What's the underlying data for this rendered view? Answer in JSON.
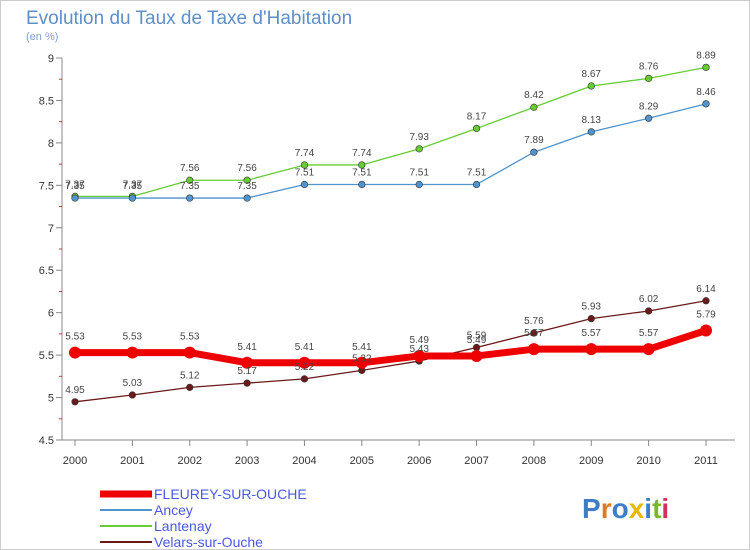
{
  "chart_data": {
    "type": "line",
    "title": "Evolution du Taux de Taxe d'Habitation",
    "subtitle": "(en %)",
    "x": [
      "2000",
      "2001",
      "2002",
      "2003",
      "2004",
      "2005",
      "2006",
      "2007",
      "2008",
      "2009",
      "2010",
      "2011"
    ],
    "ylim": [
      4.5,
      9
    ],
    "yticks": [
      "4.5",
      "5",
      "5.5",
      "6",
      "6.5",
      "7",
      "7.5",
      "8",
      "8.5",
      "9"
    ],
    "grid": false,
    "legend_position": "bottom-left",
    "series": [
      {
        "name": "FLEUREY-SUR-OUCHE",
        "color": "#ee0000",
        "values": [
          5.53,
          5.53,
          5.53,
          5.41,
          5.41,
          5.41,
          5.49,
          5.49,
          5.57,
          5.57,
          5.57,
          5.79
        ]
      },
      {
        "name": "Ancey",
        "color": "#4f94cd",
        "values": [
          7.35,
          7.35,
          7.35,
          7.35,
          7.51,
          7.51,
          7.51,
          7.51,
          7.89,
          8.13,
          8.29,
          8.46
        ]
      },
      {
        "name": "Lantenay",
        "color": "#66cc33",
        "values": [
          7.37,
          7.37,
          7.56,
          7.56,
          7.74,
          7.74,
          7.93,
          8.17,
          8.42,
          8.67,
          8.76,
          8.89
        ]
      },
      {
        "name": "Velars-sur-Ouche",
        "color": "#6b1a1a",
        "values": [
          4.95,
          5.03,
          5.12,
          5.17,
          5.22,
          5.32,
          5.43,
          5.59,
          5.76,
          5.93,
          6.02,
          6.14
        ]
      }
    ]
  },
  "watermark": {
    "text": "Proxiti"
  }
}
